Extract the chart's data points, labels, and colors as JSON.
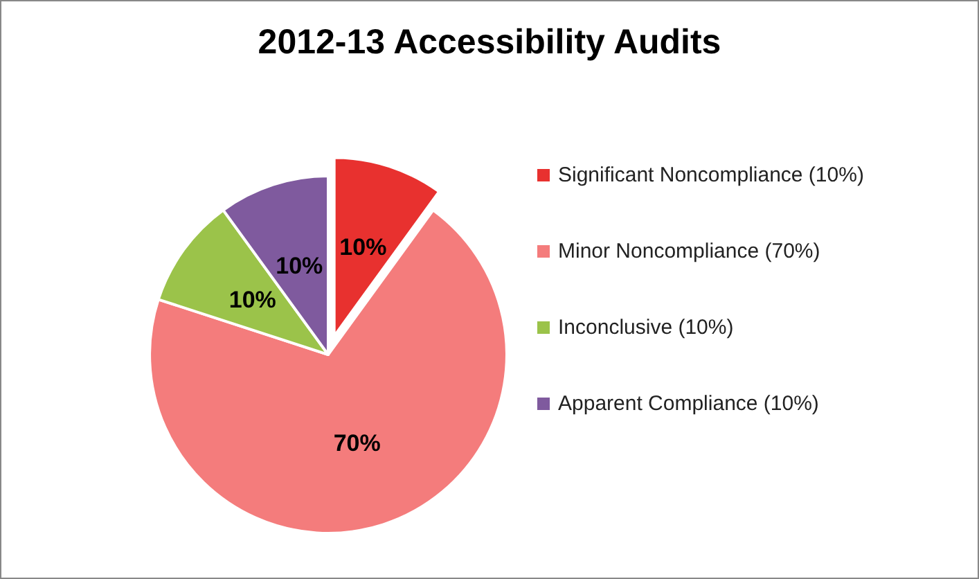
{
  "chart_data": {
    "type": "pie",
    "title": "2012-13 Accessibility Audits",
    "categories": [
      "Significant Noncompliance (10%)",
      "Minor Noncompliance (70%)",
      "Inconclusive (10%)",
      "Apparent Compliance (10%)"
    ],
    "values": [
      10,
      70,
      10,
      10
    ],
    "colors": [
      "#e8312f",
      "#f47c7c",
      "#9bc34a",
      "#7f5a9e"
    ],
    "value_labels": [
      "10%",
      "70%",
      "10%",
      "10%"
    ],
    "legend": "right"
  }
}
